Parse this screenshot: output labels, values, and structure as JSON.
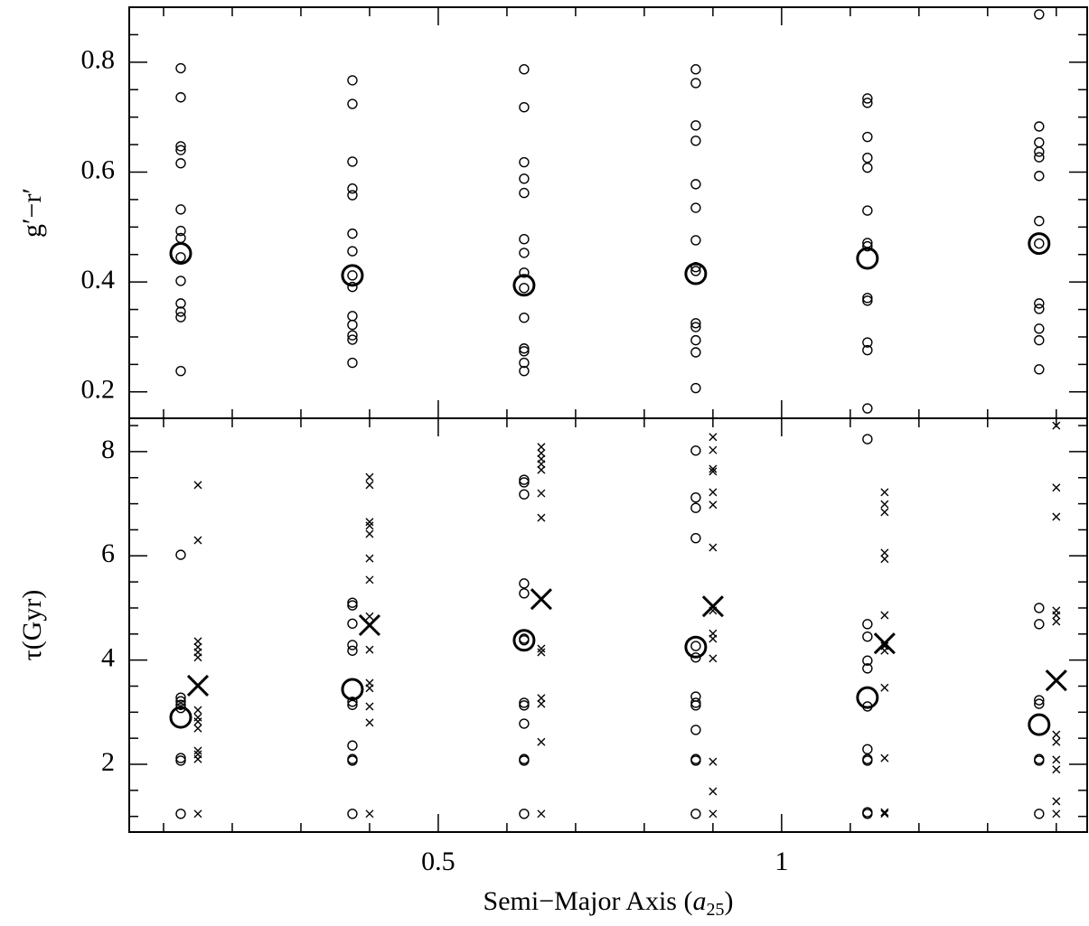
{
  "chart_data": [
    {
      "type": "scatter",
      "ylabel": "g′−r′",
      "xlim": [
        0.05,
        1.445
      ],
      "ylim": [
        0.152,
        0.9
      ],
      "yticks": [
        0.2,
        0.4,
        0.6,
        0.8
      ],
      "yminorticks": [
        0.25,
        0.3,
        0.35,
        0.45,
        0.5,
        0.55,
        0.65,
        0.7,
        0.75,
        0.85
      ],
      "xminorticks": [
        0.1,
        0.2,
        0.3,
        0.4,
        0.6,
        0.7,
        0.8,
        0.9,
        1.1,
        1.2,
        1.3,
        1.4
      ],
      "color": "#000000",
      "series": [
        {
          "marker": "circle",
          "x": [
            0.125,
            0.125,
            0.125,
            0.125,
            0.125,
            0.125,
            0.125,
            0.125,
            0.125,
            0.125,
            0.125,
            0.125,
            0.125,
            0.125
          ],
          "values": [
            0.789,
            0.736,
            0.647,
            0.64,
            0.616,
            0.532,
            0.493,
            0.48,
            0.445,
            0.402,
            0.361,
            0.346,
            0.336,
            0.238
          ]
        },
        {
          "marker": "circle",
          "x": [
            0.375,
            0.375,
            0.375,
            0.375,
            0.375,
            0.375,
            0.375,
            0.375,
            0.375,
            0.375,
            0.375,
            0.375,
            0.375,
            0.375
          ],
          "values": [
            0.767,
            0.724,
            0.619,
            0.57,
            0.558,
            0.488,
            0.456,
            0.412,
            0.391,
            0.338,
            0.322,
            0.303,
            0.295,
            0.253
          ]
        },
        {
          "marker": "circle",
          "x": [
            0.625,
            0.625,
            0.625,
            0.625,
            0.625,
            0.625,
            0.625,
            0.625,
            0.625,
            0.625,
            0.625,
            0.625,
            0.625,
            0.625
          ],
          "values": [
            0.787,
            0.718,
            0.618,
            0.588,
            0.562,
            0.478,
            0.453,
            0.417,
            0.389,
            0.335,
            0.279,
            0.274,
            0.253,
            0.238
          ]
        },
        {
          "marker": "circle",
          "x": [
            0.875,
            0.875,
            0.875,
            0.875,
            0.875,
            0.875,
            0.875,
            0.875,
            0.875,
            0.875,
            0.875,
            0.875,
            0.875,
            0.875
          ],
          "values": [
            0.787,
            0.762,
            0.685,
            0.657,
            0.578,
            0.535,
            0.476,
            0.427,
            0.42,
            0.325,
            0.318,
            0.294,
            0.272,
            0.207
          ]
        },
        {
          "marker": "circle",
          "x": [
            1.125,
            1.125,
            1.125,
            1.125,
            1.125,
            1.125,
            1.125,
            1.125,
            1.125,
            1.125,
            1.125,
            1.125,
            1.125
          ],
          "values": [
            0.734,
            0.726,
            0.664,
            0.626,
            0.608,
            0.53,
            0.471,
            0.465,
            0.371,
            0.366,
            0.29,
            0.276,
            0.17
          ]
        },
        {
          "marker": "circle",
          "x": [
            1.375,
            1.375,
            1.375,
            1.375,
            1.375,
            1.375,
            1.375,
            1.375,
            1.375,
            1.375,
            1.375,
            1.375,
            1.375
          ],
          "values": [
            0.887,
            0.683,
            0.654,
            0.637,
            0.627,
            0.593,
            0.511,
            0.47,
            0.361,
            0.351,
            0.315,
            0.294,
            0.241
          ]
        },
        {
          "marker": "big-circle",
          "x": [
            0.125,
            0.375,
            0.625,
            0.875,
            1.125,
            1.375
          ],
          "values": [
            0.452,
            0.412,
            0.394,
            0.415,
            0.443,
            0.47
          ]
        }
      ]
    },
    {
      "type": "scatter",
      "ylabel": "τ(Gyr)",
      "xlabel": {
        "text": "Semi−Major Axis (",
        "symbol": "a",
        "subscript": "25",
        "close": ")"
      },
      "xlim": [
        0.05,
        1.445
      ],
      "ylim": [
        0.7,
        8.64
      ],
      "xticks": [
        0.5,
        1
      ],
      "xminorticks": [
        0.1,
        0.2,
        0.3,
        0.4,
        0.6,
        0.7,
        0.8,
        0.9,
        1.1,
        1.2,
        1.3,
        1.4
      ],
      "yticks": [
        2,
        4,
        6,
        8
      ],
      "yminorticks": [
        1,
        1.5,
        2.5,
        3,
        3.5,
        4.5,
        5,
        5.5,
        6.5,
        7,
        7.5,
        8.5
      ],
      "color": "#000000",
      "series": [
        {
          "marker": "circle",
          "x": [
            0.125,
            0.125,
            0.125,
            0.125,
            0.125,
            0.125,
            0.125,
            0.125
          ],
          "values": [
            6.02,
            3.28,
            3.21,
            3.14,
            3.08,
            2.12,
            2.07,
            1.05
          ]
        },
        {
          "marker": "cross",
          "x": [
            0.15,
            0.15,
            0.15,
            0.15,
            0.15,
            0.15,
            0.15,
            0.15,
            0.15,
            0.15,
            0.15,
            0.15,
            0.15,
            0.15
          ],
          "values": [
            7.36,
            6.3,
            4.36,
            4.25,
            4.15,
            4.05,
            3.04,
            2.9,
            2.82,
            2.69,
            2.26,
            2.19,
            2.1,
            1.05
          ]
        },
        {
          "marker": "circle",
          "x": [
            0.375,
            0.375,
            0.375,
            0.375,
            0.375,
            0.375,
            0.375,
            0.375,
            0.375,
            0.375,
            0.375
          ],
          "values": [
            5.1,
            5.05,
            4.7,
            4.29,
            4.18,
            3.2,
            3.14,
            2.36,
            2.1,
            2.07,
            1.05
          ]
        },
        {
          "marker": "cross",
          "x": [
            0.4,
            0.4,
            0.4,
            0.4,
            0.4,
            0.4,
            0.4,
            0.4,
            0.4,
            0.4,
            0.4,
            0.4,
            0.4,
            0.4
          ],
          "values": [
            7.51,
            7.36,
            6.65,
            6.58,
            6.42,
            5.95,
            5.54,
            4.84,
            4.2,
            3.56,
            3.46,
            3.11,
            2.8,
            1.05
          ]
        },
        {
          "marker": "circle",
          "x": [
            0.625,
            0.625,
            0.625,
            0.625,
            0.625,
            0.625,
            0.625,
            0.625,
            0.625,
            0.625,
            0.625,
            0.625,
            0.625
          ],
          "values": [
            7.46,
            7.41,
            7.18,
            5.47,
            5.28,
            4.41,
            4.38,
            3.18,
            3.13,
            2.78,
            2.1,
            2.07,
            1.05
          ]
        },
        {
          "marker": "cross",
          "x": [
            0.65,
            0.65,
            0.65,
            0.65,
            0.65,
            0.65,
            0.65,
            0.65,
            0.65,
            0.65,
            0.65,
            0.65,
            0.65
          ],
          "values": [
            8.09,
            7.97,
            7.86,
            7.76,
            7.65,
            7.2,
            6.73,
            4.22,
            4.15,
            3.27,
            3.16,
            2.43,
            1.05
          ]
        },
        {
          "marker": "circle",
          "x": [
            0.875,
            0.875,
            0.875,
            0.875,
            0.875,
            0.875,
            0.875,
            0.875,
            0.875,
            0.875,
            0.875,
            0.875,
            0.875
          ],
          "values": [
            8.02,
            7.12,
            6.92,
            6.34,
            4.27,
            4.05,
            3.3,
            3.18,
            3.13,
            2.66,
            2.1,
            2.07,
            1.05
          ]
        },
        {
          "marker": "cross",
          "x": [
            0.9,
            0.9,
            0.9,
            0.9,
            0.9,
            0.9,
            0.9,
            0.9,
            0.9,
            0.9,
            0.9,
            0.9,
            0.9,
            0.9
          ],
          "values": [
            8.28,
            8.03,
            7.67,
            7.62,
            7.22,
            6.98,
            6.16,
            4.95,
            4.51,
            4.41,
            4.03,
            2.05,
            1.48,
            1.05
          ]
        },
        {
          "marker": "circle",
          "x": [
            1.125,
            1.125,
            1.125,
            1.125,
            1.125,
            1.125,
            1.125,
            1.125,
            1.125,
            1.125,
            1.125
          ],
          "values": [
            8.24,
            4.69,
            4.45,
            3.99,
            3.84,
            3.11,
            2.29,
            2.1,
            2.07,
            1.08,
            1.05
          ]
        },
        {
          "marker": "cross",
          "x": [
            1.15,
            1.15,
            1.15,
            1.15,
            1.15,
            1.15,
            1.15,
            1.15,
            1.15,
            1.15,
            1.15,
            1.15
          ],
          "values": [
            7.22,
            6.99,
            6.84,
            6.06,
            5.94,
            4.86,
            4.27,
            4.18,
            3.47,
            2.12,
            1.08,
            1.05
          ]
        },
        {
          "marker": "circle",
          "x": [
            1.375,
            1.375,
            1.375,
            1.375,
            1.375,
            1.375,
            1.375
          ],
          "values": [
            5.0,
            4.69,
            3.23,
            3.16,
            2.1,
            2.07,
            1.05
          ]
        },
        {
          "marker": "cross",
          "x": [
            1.4,
            1.4,
            1.4,
            1.4,
            1.4,
            1.4,
            1.4,
            1.4,
            1.4,
            1.4,
            1.4,
            1.4
          ],
          "values": [
            8.5,
            7.31,
            6.75,
            4.95,
            4.86,
            4.74,
            2.57,
            2.43,
            2.09,
            1.9,
            1.29,
            1.05
          ]
        },
        {
          "marker": "big-circle",
          "x": [
            0.125,
            0.375,
            0.625,
            0.875,
            1.125,
            1.375
          ],
          "values": [
            2.9,
            3.44,
            4.38,
            4.25,
            3.28,
            2.76
          ]
        },
        {
          "marker": "big-cross",
          "x": [
            0.15,
            0.4,
            0.65,
            0.9,
            1.15,
            1.4
          ],
          "values": [
            3.51,
            4.67,
            5.17,
            5.03,
            4.32,
            3.61
          ]
        }
      ]
    }
  ]
}
